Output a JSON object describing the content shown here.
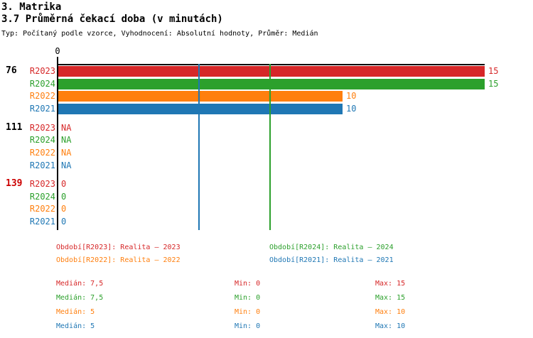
{
  "page": {
    "title": "3. Matrika",
    "subtitle": "3.7 Průměrná čekací doba (v minutách)",
    "description": "Typ: Počítaný podle vzorce, Vyhodnocení: Absolutní hodnoty, Průměr: Medián"
  },
  "chart_data": {
    "type": "bar",
    "orientation": "horizontal",
    "title": "3.7 Průměrná čekací doba (v minutách)",
    "x_min": 0,
    "x_max": 15,
    "x_tick_labels": [
      "0"
    ],
    "grid": false,
    "series": [
      {
        "id": "R2023",
        "label": "R2023",
        "color": "#d62728"
      },
      {
        "id": "R2024",
        "label": "R2024",
        "color": "#2ca02c"
      },
      {
        "id": "R2022",
        "label": "R2022",
        "color": "#ff7f0e"
      },
      {
        "id": "R2021",
        "label": "R2021",
        "color": "#1f77b4"
      }
    ],
    "groups": [
      {
        "label": "76",
        "label_color": "#000000",
        "rows": [
          {
            "series": "R2023",
            "value": 15,
            "display": "15"
          },
          {
            "series": "R2024",
            "value": 15,
            "display": "15"
          },
          {
            "series": "R2022",
            "value": 10,
            "display": "10"
          },
          {
            "series": "R2021",
            "value": 10,
            "display": "10"
          }
        ]
      },
      {
        "label": "111",
        "label_color": "#000000",
        "rows": [
          {
            "series": "R2023",
            "value": null,
            "display": "NA"
          },
          {
            "series": "R2024",
            "value": null,
            "display": "NA"
          },
          {
            "series": "R2022",
            "value": null,
            "display": "NA"
          },
          {
            "series": "R2021",
            "value": null,
            "display": "NA"
          }
        ]
      },
      {
        "label": "139",
        "label_color": "#cc0000",
        "rows": [
          {
            "series": "R2023",
            "value": 0,
            "display": "0"
          },
          {
            "series": "R2024",
            "value": 0,
            "display": "0"
          },
          {
            "series": "R2022",
            "value": 0,
            "display": "0"
          },
          {
            "series": "R2021",
            "value": 0,
            "display": "0"
          }
        ]
      }
    ],
    "median_lines": [
      {
        "series": "R2021",
        "value": 5,
        "color": "#1f77b4"
      },
      {
        "series": "R2024",
        "value": 7.5,
        "color": "#2ca02c"
      }
    ]
  },
  "legend": {
    "entries": [
      {
        "series": "R2023",
        "label": "Období[R2023]: Realita – 2023",
        "color": "#d62728"
      },
      {
        "series": "R2024",
        "label": "Období[R2024]: Realita – 2024",
        "color": "#2ca02c"
      },
      {
        "series": "R2022",
        "label": "Období[R2022]: Realita – 2022",
        "color": "#ff7f0e"
      },
      {
        "series": "R2021",
        "label": "Období[R2021]: Realita – 2021",
        "color": "#1f77b4"
      }
    ]
  },
  "stats": {
    "labels": {
      "median": "Medián",
      "min": "Min",
      "max": "Max"
    },
    "rows": [
      {
        "series": "R2023",
        "color": "#d62728",
        "median": "7,5",
        "min": "0",
        "max": "15"
      },
      {
        "series": "R2024",
        "color": "#2ca02c",
        "median": "7,5",
        "min": "0",
        "max": "15"
      },
      {
        "series": "R2022",
        "color": "#ff7f0e",
        "median": "5",
        "min": "0",
        "max": "10"
      },
      {
        "series": "R2021",
        "color": "#1f77b4",
        "median": "5",
        "min": "0",
        "max": "10"
      }
    ]
  },
  "colors": {
    "axis": "#000000",
    "background": "#ffffff"
  }
}
